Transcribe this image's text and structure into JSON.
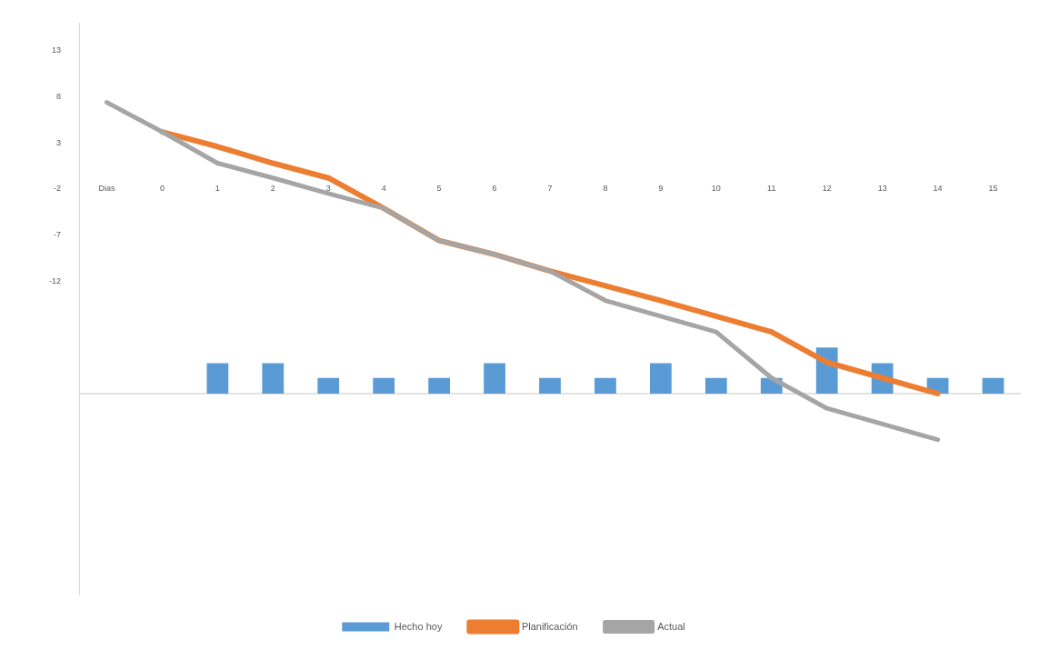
{
  "chart_data": {
    "type": "bar",
    "categories": [
      "Dias",
      "0",
      "1",
      "2",
      "3",
      "4",
      "5",
      "6",
      "7",
      "8",
      "9",
      "10",
      "11",
      "12",
      "13",
      "14",
      "15"
    ],
    "series": [
      {
        "name": "Hecho hoy",
        "color": "#5b9bd5",
        "base": [
          null,
          null,
          -24.2,
          -24.2,
          -24.2,
          -24.2,
          -24.2,
          -24.2,
          -24.2,
          -24.2,
          -24.2,
          -24.2,
          -24.2,
          -24.2,
          -24.2,
          -24.2,
          -24.2
        ],
        "values": [
          null,
          null,
          3.3,
          3.3,
          1.7,
          1.7,
          1.7,
          3.3,
          1.7,
          1.7,
          3.3,
          1.7,
          1.7,
          5,
          3.3,
          1.7,
          1.7
        ]
      },
      {
        "name": "Planificación",
        "type": "line",
        "color": "#ed7d31",
        "values": [
          null,
          4.2,
          2.6,
          0.8,
          -0.8,
          -4.1,
          -7.6,
          -9.1,
          -10.9,
          -12.5,
          -14.1,
          -15.8,
          -17.5,
          -20.8,
          -22.5,
          -24.2,
          null
        ]
      },
      {
        "name": "Actual",
        "type": "line",
        "color": "#a5a5a5",
        "values": [
          7.4,
          4.2,
          0.8,
          -0.8,
          -2.5,
          -4.1,
          -7.6,
          -9.1,
          -10.9,
          -14.1,
          -15.8,
          -17.5,
          -22.5,
          -25.8,
          -27.5,
          -29.2,
          null
        ]
      }
    ],
    "ylim": [
      -46,
      16
    ],
    "yticks": [
      13,
      8,
      3,
      -2,
      -7,
      -12
    ],
    "ref_lines": [
      {
        "axis": "y",
        "value": -24.2,
        "color": "#d9d9d9"
      }
    ],
    "grid": false,
    "legend": "bottom"
  }
}
